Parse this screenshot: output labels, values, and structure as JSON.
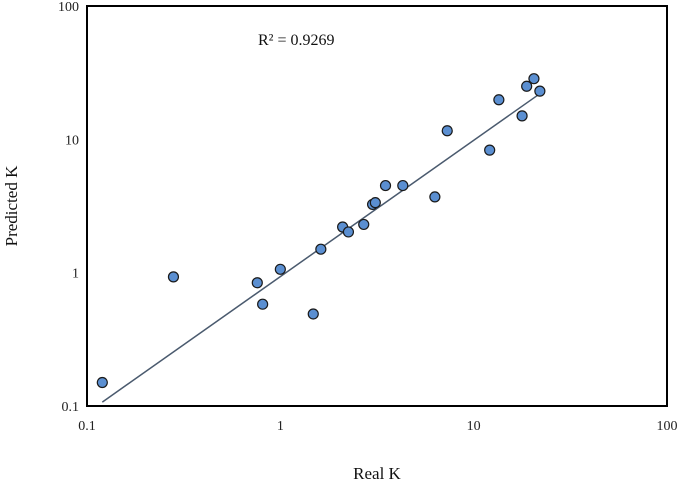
{
  "chart_data": {
    "type": "scatter",
    "xscale": "log",
    "yscale": "log",
    "xlim": [
      0.1,
      100
    ],
    "ylim": [
      0.1,
      100
    ],
    "x_ticks": [
      "0.1",
      "1",
      "10",
      "100"
    ],
    "y_ticks": [
      "0.1",
      "1",
      "10",
      "100"
    ],
    "xlabel": "Real K",
    "ylabel": "Predicted K",
    "annotation": "R² = 0.9269",
    "grid": false,
    "legend": "none",
    "marker_color": "#5b8fd1",
    "marker_edge": "#1a1a1a",
    "trendline_color": "#4a5a6e",
    "points": [
      {
        "x": 0.12,
        "y": 0.15
      },
      {
        "x": 0.28,
        "y": 0.93
      },
      {
        "x": 0.76,
        "y": 0.84
      },
      {
        "x": 0.81,
        "y": 0.58
      },
      {
        "x": 1.0,
        "y": 1.06
      },
      {
        "x": 1.48,
        "y": 0.49
      },
      {
        "x": 1.62,
        "y": 1.5
      },
      {
        "x": 2.1,
        "y": 2.2
      },
      {
        "x": 2.25,
        "y": 2.02
      },
      {
        "x": 2.7,
        "y": 2.3
      },
      {
        "x": 3.0,
        "y": 3.25
      },
      {
        "x": 3.1,
        "y": 3.35
      },
      {
        "x": 3.5,
        "y": 4.5
      },
      {
        "x": 4.3,
        "y": 4.5
      },
      {
        "x": 6.3,
        "y": 3.7
      },
      {
        "x": 7.3,
        "y": 11.6
      },
      {
        "x": 12.1,
        "y": 8.3
      },
      {
        "x": 13.5,
        "y": 19.8
      },
      {
        "x": 17.8,
        "y": 15.0
      },
      {
        "x": 18.8,
        "y": 25.0
      },
      {
        "x": 20.5,
        "y": 28.5
      },
      {
        "x": 22.0,
        "y": 23.0
      }
    ],
    "trendline": {
      "x": [
        0.12,
        22.0
      ],
      "y": [
        0.107,
        22.0
      ]
    }
  }
}
